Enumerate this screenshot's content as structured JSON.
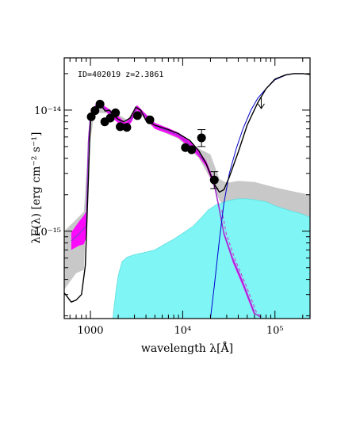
{
  "chart_data": {
    "type": "sed",
    "annotation": "ID=402019 z=2.3861",
    "xlabel": "wavelength λ[Å]",
    "ylabel": "λF(λ) [erg cm⁻² s⁻¹]",
    "xscale": "log",
    "yscale": "log",
    "xlim": [
      520,
      240000
    ],
    "ylim": [
      1.9e-16,
      2.7e-14
    ],
    "x_ticks": [
      {
        "value": 1000,
        "label": "1000"
      },
      {
        "value": 10000,
        "label": "10⁴"
      },
      {
        "value": 100000,
        "label": "10⁵"
      }
    ],
    "y_ticks": [
      {
        "value": 1e-15,
        "label": "10⁻¹⁵"
      },
      {
        "value": 1e-14,
        "label": "10⁻¹⁴"
      }
    ],
    "colors": {
      "total_model": "#000000",
      "stellar_band": "#ff00ff",
      "stellar_line": "#9933cc",
      "dust_torus": "#7ff5f5",
      "model_range": "#c8c8c8",
      "cold_dust": "#0000cc",
      "points": "#000000"
    },
    "photometry": [
      {
        "x": 1020,
        "y": 8.8e-15
      },
      {
        "x": 1120,
        "y": 9.9e-15
      },
      {
        "x": 1270,
        "y": 1.12e-14
      },
      {
        "x": 1430,
        "y": 8e-15
      },
      {
        "x": 1640,
        "y": 8.6e-15
      },
      {
        "x": 1870,
        "y": 9.5e-15
      },
      {
        "x": 2100,
        "y": 7.3e-15
      },
      {
        "x": 2480,
        "y": 7.2e-15
      },
      {
        "x": 3230,
        "y": 9e-15
      },
      {
        "x": 4410,
        "y": 8.3e-15
      },
      {
        "x": 10700,
        "y": 4.9e-15
      },
      {
        "x": 12500,
        "y": 4.7e-15
      },
      {
        "x": 16000,
        "y": 5.9e-15,
        "err": [
          5e-15,
          6.9e-15
        ]
      },
      {
        "x": 22000,
        "y": 2.65e-15,
        "err": [
          2.25e-15,
          3.1e-15
        ]
      }
    ],
    "upper_limits": [
      {
        "x": 71000,
        "y": 1.18e-14
      }
    ],
    "total_model": [
      [
        520,
        3.1e-16
      ],
      [
        620,
        2.6e-16
      ],
      [
        700,
        2.7e-16
      ],
      [
        800,
        3e-16
      ],
      [
        880,
        5.2e-16
      ],
      [
        950,
        2.7e-15
      ],
      [
        985,
        6.2e-15
      ],
      [
        1010,
        8.4e-15
      ],
      [
        1060,
        9.6e-15
      ],
      [
        1100,
        1e-14
      ],
      [
        1150,
        1.06e-14
      ],
      [
        1200,
        1.15e-14
      ],
      [
        1300,
        1.1e-14
      ],
      [
        1450,
        9.8e-15
      ],
      [
        1600,
        1e-14
      ],
      [
        1800,
        9e-15
      ],
      [
        2000,
        8.4e-15
      ],
      [
        2300,
        8e-15
      ],
      [
        2700,
        8.6e-15
      ],
      [
        3100,
        1.06e-14
      ],
      [
        3500,
        1e-14
      ],
      [
        4000,
        8.2e-15
      ],
      [
        5000,
        7.5e-15
      ],
      [
        7000,
        6.9e-15
      ],
      [
        9000,
        6.4e-15
      ],
      [
        12000,
        5.6e-15
      ],
      [
        15000,
        4.6e-15
      ],
      [
        18000,
        3.6e-15
      ],
      [
        22000,
        2.45e-15
      ],
      [
        25000,
        2.1e-15
      ],
      [
        28000,
        2.2e-15
      ],
      [
        32000,
        2.8e-15
      ],
      [
        40000,
        4.5e-15
      ],
      [
        50000,
        7.5e-15
      ],
      [
        65000,
        1.15e-14
      ],
      [
        80000,
        1.5e-14
      ],
      [
        100000,
        1.8e-14
      ],
      [
        130000,
        1.95e-14
      ],
      [
        160000,
        2e-14
      ],
      [
        200000,
        2e-14
      ],
      [
        240000,
        1.97e-14
      ]
    ],
    "stellar_band": [
      [
        620,
        7e-16,
        9.8e-16
      ],
      [
        750,
        7.6e-16,
        1.2e-15
      ],
      [
        850,
        7.8e-16,
        1.35e-15
      ],
      [
        900,
        8.8e-16,
        1.45e-15
      ],
      [
        950,
        4.8e-15,
        6.4e-15
      ],
      [
        1000,
        8.3e-15,
        9.3e-15
      ],
      [
        1100,
        9.7e-15,
        1.06e-14
      ],
      [
        1200,
        1.12e-14,
        1.21e-14
      ],
      [
        1300,
        1.06e-14,
        1.14e-14
      ],
      [
        1500,
        9.6e-15,
        1.05e-14
      ],
      [
        1700,
        8.7e-15,
        9.8e-15
      ],
      [
        2000,
        7.8e-15,
        8.9e-15
      ],
      [
        2400,
        6.9e-15,
        7.9e-15
      ],
      [
        2800,
        8e-15,
        8.9e-15
      ],
      [
        3200,
        1e-14,
        1.1e-14
      ],
      [
        3800,
        8.8e-15,
        9.6e-15
      ],
      [
        5000,
        7e-15,
        7.8e-15
      ],
      [
        7000,
        6.4e-15,
        7.1e-15
      ],
      [
        9000,
        5.9e-15,
        6.5e-15
      ],
      [
        12000,
        4.9e-15,
        5.6e-15
      ],
      [
        15000,
        4.1e-15,
        4.6e-15
      ],
      [
        18000,
        3.4e-15,
        3.8e-15
      ],
      [
        22000,
        2.3e-15,
        2.6e-15
      ],
      [
        25000,
        1.45e-15,
        1.6e-15
      ],
      [
        28000,
        9.2e-16,
        1e-15
      ],
      [
        35000,
        5.5e-16,
        6.1e-16
      ],
      [
        45000,
        3.5e-16,
        3.9e-16
      ],
      [
        60000,
        2e-16,
        2.2e-16
      ]
    ],
    "stellar_line": [
      [
        620,
        8.3e-16
      ],
      [
        750,
        9.5e-16
      ],
      [
        850,
        1.05e-15
      ],
      [
        900,
        1.1e-15
      ],
      [
        950,
        5.5e-15
      ],
      [
        1000,
        8.8e-15
      ],
      [
        1100,
        1.02e-14
      ],
      [
        1200,
        1.17e-14
      ],
      [
        1300,
        1.1e-14
      ],
      [
        1500,
        1e-14
      ],
      [
        1700,
        9.2e-15
      ],
      [
        2000,
        8.3e-15
      ],
      [
        2400,
        7.4e-15
      ],
      [
        2800,
        8.4e-15
      ],
      [
        3200,
        1.05e-14
      ],
      [
        3800,
        9.2e-15
      ],
      [
        5000,
        7.4e-15
      ],
      [
        7000,
        6.7e-15
      ],
      [
        9000,
        6.2e-15
      ],
      [
        12000,
        5.2e-15
      ],
      [
        15000,
        4.3e-15
      ],
      [
        18000,
        3.6e-15
      ],
      [
        22000,
        2.45e-15
      ],
      [
        25000,
        1.5e-15
      ],
      [
        28000,
        9.5e-16
      ],
      [
        35000,
        5.8e-16
      ],
      [
        45000,
        3.7e-16
      ],
      [
        60000,
        2.1e-16
      ],
      [
        70000,
        1.95e-16
      ]
    ],
    "torus_model": [
      [
        1750,
        1.9e-16
      ],
      [
        1800,
        2.3e-16
      ],
      [
        1900,
        3.3e-16
      ],
      [
        2000,
        4.3e-16
      ],
      [
        2200,
        5.6e-16
      ],
      [
        2500,
        6.1e-16
      ],
      [
        3000,
        6.4e-16
      ],
      [
        4000,
        6.7e-16
      ],
      [
        5000,
        7e-16
      ],
      [
        6000,
        7.6e-16
      ],
      [
        8000,
        8.6e-16
      ],
      [
        10000,
        9.6e-16
      ],
      [
        13000,
        1.1e-15
      ],
      [
        16000,
        1.3e-15
      ],
      [
        19000,
        1.5e-15
      ],
      [
        23000,
        1.65e-15
      ],
      [
        27000,
        1.72e-15
      ],
      [
        32000,
        1.8e-15
      ],
      [
        40000,
        1.85e-15
      ],
      [
        50000,
        1.85e-15
      ],
      [
        60000,
        1.82e-15
      ],
      [
        80000,
        1.75e-15
      ],
      [
        100000,
        1.62e-15
      ],
      [
        130000,
        1.52e-15
      ],
      [
        160000,
        1.45e-15
      ],
      [
        200000,
        1.38e-15
      ],
      [
        240000,
        1.3e-15
      ]
    ],
    "model_range": [
      [
        520,
        3.3e-16,
        1e-15
      ],
      [
        700,
        4.5e-16,
        1.25e-15
      ],
      [
        850,
        4.8e-16,
        1.45e-15
      ],
      [
        950,
        4.2e-15,
        5.8e-15
      ],
      [
        1100,
        9.5e-15,
        1.08e-14
      ],
      [
        1500,
        9.4e-15,
        1.06e-14
      ],
      [
        2500,
        7.2e-15,
        8.3e-15
      ],
      [
        3200,
        9.8e-15,
        1.1e-14
      ],
      [
        5000,
        7e-15,
        7.9e-15
      ],
      [
        9000,
        5.8e-15,
        6.5e-15
      ],
      [
        15000,
        4e-15,
        4.8e-15
      ],
      [
        20000,
        2.7e-15,
        4.3e-15
      ],
      [
        25000,
        1.8e-15,
        2.7e-15
      ],
      [
        30000,
        1.5e-15,
        2.5e-15
      ],
      [
        40000,
        1.6e-15,
        2.6e-15
      ],
      [
        60000,
        1.7e-15,
        2.55e-15
      ],
      [
        100000,
        1.5e-15,
        2.3e-15
      ],
      [
        150000,
        1.35e-15,
        2.15e-15
      ],
      [
        240000,
        1.2e-15,
        2e-15
      ]
    ],
    "cold_dust": [
      [
        20000,
        1.9e-16
      ],
      [
        22000,
        3.5e-16
      ],
      [
        25000,
        8.5e-16
      ],
      [
        28000,
        1.7e-15
      ],
      [
        32000,
        3e-15
      ],
      [
        38000,
        4.8e-15
      ],
      [
        45000,
        7e-15
      ],
      [
        55000,
        1e-14
      ],
      [
        65000,
        1.25e-14
      ],
      [
        80000,
        1.5e-14
      ],
      [
        100000,
        1.78e-14
      ],
      [
        130000,
        1.94e-14
      ],
      [
        160000,
        2e-14
      ],
      [
        200000,
        2e-14
      ],
      [
        240000,
        1.97e-14
      ]
    ]
  }
}
